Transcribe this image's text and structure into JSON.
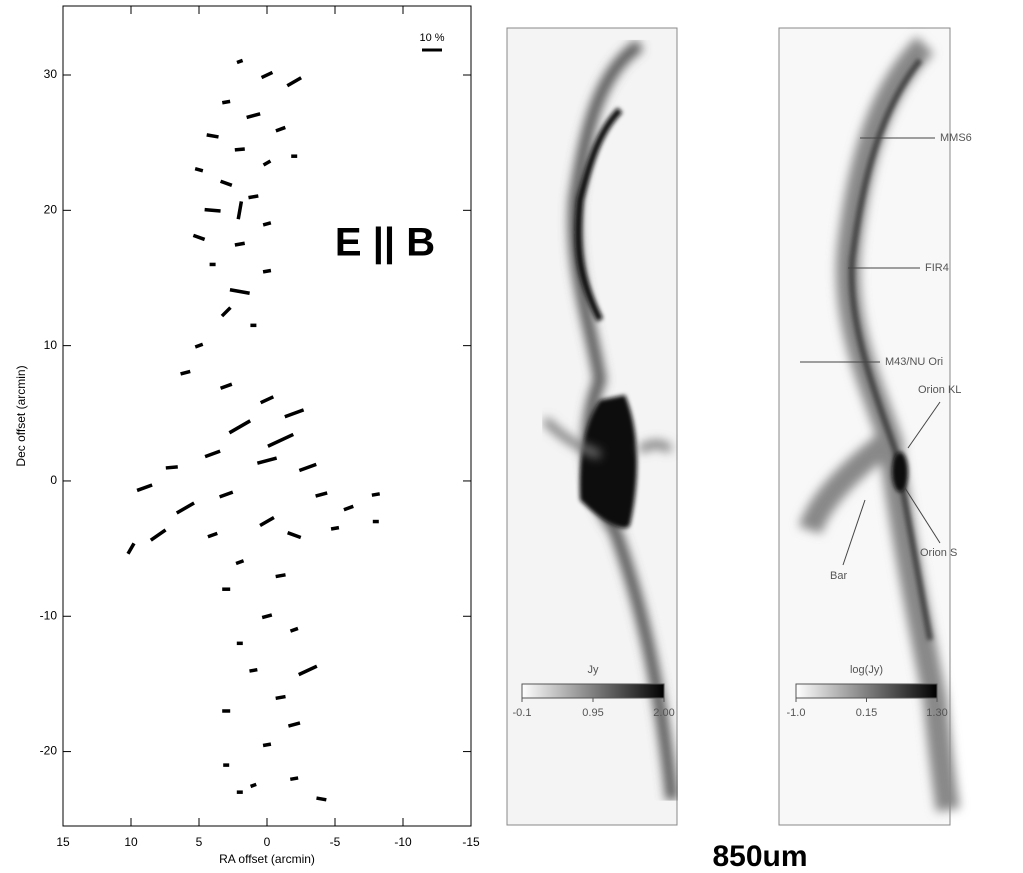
{
  "chart_data": [
    {
      "type": "vector",
      "xlabel": "RA offset (arcmin)",
      "ylabel": "Dec offset (arcmin)",
      "xlim": [
        15,
        -15
      ],
      "ylim": [
        -25.5,
        35.1
      ],
      "xticks": [
        15,
        10,
        5,
        0,
        -5,
        -10,
        -15
      ],
      "yticks": [
        30,
        20,
        10,
        0,
        -10,
        -20
      ],
      "scale": {
        "value": 10,
        "label": "10 %"
      },
      "annotation": "E || B",
      "color": "#000000",
      "vectors": {
        "x": [
          2,
          0,
          -2,
          3,
          1,
          -1,
          4,
          2,
          0,
          -2,
          5,
          3,
          1,
          4,
          2,
          0,
          5,
          2,
          4,
          0,
          2,
          3,
          1,
          5,
          6,
          3,
          0,
          -2,
          2,
          -1,
          4,
          0,
          -3,
          7,
          9,
          6,
          3,
          -4,
          -6,
          -8,
          8,
          10,
          4,
          0,
          -2,
          -5,
          -8,
          2,
          -1,
          3,
          0,
          -2,
          2,
          -3,
          1,
          -1,
          3,
          -2,
          0,
          3,
          -2,
          1,
          -4,
          2
        ],
        "y": [
          31,
          30,
          29.5,
          28,
          27,
          26,
          25.5,
          24.5,
          23.5,
          24,
          23,
          22,
          21,
          20,
          20,
          19,
          18,
          17.5,
          16,
          15.5,
          14,
          12.5,
          11.5,
          10,
          8,
          7,
          6,
          5,
          4,
          3,
          2,
          1.5,
          1,
          1,
          -0.5,
          -2,
          -1,
          -1,
          -2,
          -1,
          -4,
          -5,
          -4,
          -3,
          -4,
          -3.5,
          -3,
          -6,
          -7,
          -8,
          -10,
          -11,
          -12,
          -14,
          -14,
          -16,
          -17,
          -18,
          -19.5,
          -21,
          -22,
          -22.5,
          -23.5,
          -23
        ],
        "pol": [
          3,
          6,
          8,
          4,
          7,
          5,
          6,
          5,
          4,
          3,
          4,
          6,
          5,
          8,
          9,
          4,
          6,
          5,
          3,
          4,
          10,
          6,
          3,
          4,
          5,
          6,
          7,
          10,
          12,
          14,
          8,
          10,
          9,
          6,
          8,
          10,
          7,
          6,
          5,
          4,
          9,
          6,
          5,
          8,
          7,
          4,
          3,
          4,
          5,
          4,
          5,
          4,
          3,
          10,
          4,
          5,
          4,
          6,
          4,
          3,
          4,
          3,
          5,
          3
        ],
        "angle": [
          20,
          25,
          30,
          10,
          15,
          20,
          -10,
          5,
          30,
          0,
          -15,
          -20,
          10,
          -5,
          80,
          15,
          -20,
          10,
          0,
          10,
          -10,
          45,
          0,
          20,
          15,
          20,
          25,
          20,
          30,
          25,
          20,
          15,
          20,
          5,
          20,
          30,
          20,
          15,
          20,
          10,
          35,
          60,
          20,
          30,
          -20,
          10,
          0,
          20,
          10,
          0,
          15,
          20,
          0,
          25,
          10,
          10,
          0,
          15,
          10,
          0,
          10,
          20,
          -10,
          0
        ]
      }
    },
    {
      "type": "image",
      "colorbar_label": "Jy",
      "clim": [
        -0.1,
        2.0
      ],
      "cticks": [
        -0.1,
        0.95,
        {
          "value": 2.0,
          "label": "2.00"
        }
      ]
    },
    {
      "type": "image",
      "colorbar_label": "log(Jy)",
      "clim": [
        -1.0,
        1.3
      ],
      "cticks": [
        {
          "value": -1.0,
          "label": "-1.0"
        },
        0.15,
        {
          "value": 1.3,
          "label": "1.30"
        }
      ],
      "annotations": [
        "MMS6",
        "FIR4",
        "M43/NU Ori",
        "Orion KL",
        "Orion S",
        "Bar"
      ]
    }
  ],
  "caption": "850um"
}
